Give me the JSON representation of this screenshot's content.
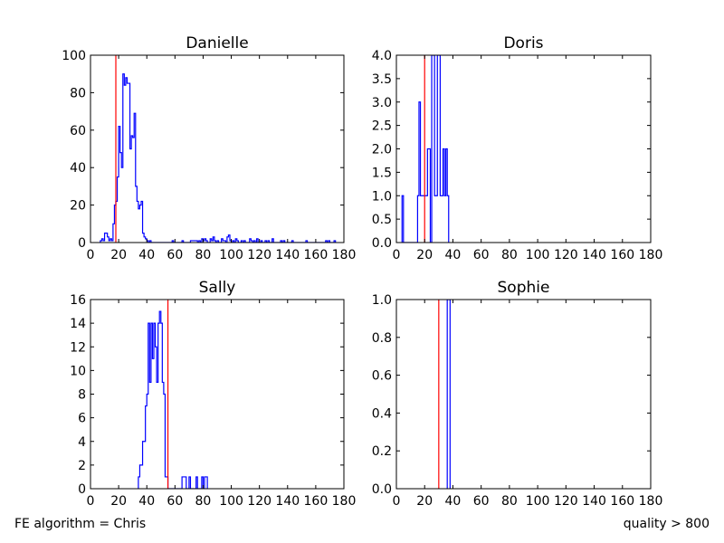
{
  "figure": {
    "footer_left": "FE algorithm = Chris",
    "footer_right": "quality > 800"
  },
  "chart_data": [
    {
      "type": "histogram",
      "title": "Danielle",
      "xlabel": "",
      "ylabel": "",
      "xlim": [
        0,
        180
      ],
      "ylim": [
        0,
        100
      ],
      "xticks": [
        0,
        20,
        40,
        60,
        80,
        100,
        120,
        140,
        160,
        180
      ],
      "yticks": [
        0,
        20,
        40,
        60,
        80,
        100
      ],
      "bin_width": 1,
      "step_color": "#0000ff",
      "threshold": {
        "x": 18,
        "color": "#ff0000"
      },
      "bins": [
        [
          7,
          1
        ],
        [
          8,
          2
        ],
        [
          9,
          1
        ],
        [
          10,
          5
        ],
        [
          11,
          5
        ],
        [
          12,
          3
        ],
        [
          13,
          1
        ],
        [
          14,
          2
        ],
        [
          15,
          1
        ],
        [
          16,
          10
        ],
        [
          17,
          20
        ],
        [
          18,
          22
        ],
        [
          19,
          35
        ],
        [
          20,
          62
        ],
        [
          21,
          48
        ],
        [
          22,
          40
        ],
        [
          23,
          90
        ],
        [
          24,
          84
        ],
        [
          25,
          88
        ],
        [
          26,
          85
        ],
        [
          27,
          85
        ],
        [
          28,
          50
        ],
        [
          29,
          57
        ],
        [
          30,
          56
        ],
        [
          31,
          69
        ],
        [
          32,
          30
        ],
        [
          33,
          22
        ],
        [
          34,
          18
        ],
        [
          35,
          20
        ],
        [
          36,
          22
        ],
        [
          37,
          5
        ],
        [
          38,
          3
        ],
        [
          39,
          2
        ],
        [
          40,
          1
        ],
        [
          42,
          1
        ],
        [
          58,
          1
        ],
        [
          65,
          1
        ],
        [
          71,
          1
        ],
        [
          72,
          1
        ],
        [
          73,
          1
        ],
        [
          74,
          1
        ],
        [
          75,
          1
        ],
        [
          77,
          1
        ],
        [
          79,
          2
        ],
        [
          80,
          1
        ],
        [
          81,
          2
        ],
        [
          82,
          1
        ],
        [
          85,
          2
        ],
        [
          86,
          1
        ],
        [
          87,
          3
        ],
        [
          88,
          1
        ],
        [
          90,
          1
        ],
        [
          93,
          2
        ],
        [
          94,
          1
        ],
        [
          95,
          1
        ],
        [
          97,
          3
        ],
        [
          98,
          4
        ],
        [
          99,
          1
        ],
        [
          101,
          1
        ],
        [
          103,
          2
        ],
        [
          104,
          1
        ],
        [
          107,
          1
        ],
        [
          109,
          1
        ],
        [
          113,
          2
        ],
        [
          114,
          1
        ],
        [
          116,
          1
        ],
        [
          118,
          2
        ],
        [
          121,
          1
        ],
        [
          124,
          1
        ],
        [
          126,
          1
        ],
        [
          129,
          2
        ],
        [
          135,
          1
        ],
        [
          137,
          1
        ],
        [
          143,
          1
        ],
        [
          153,
          1
        ],
        [
          167,
          1
        ],
        [
          169,
          1
        ],
        [
          173,
          1
        ]
      ]
    },
    {
      "type": "histogram",
      "title": "Doris",
      "xlabel": "",
      "ylabel": "",
      "xlim": [
        0,
        180
      ],
      "ylim": [
        0,
        4
      ],
      "xticks": [
        0,
        20,
        40,
        60,
        80,
        100,
        120,
        140,
        160,
        180
      ],
      "yticks": [
        0,
        0.5,
        1.0,
        1.5,
        2.0,
        2.5,
        3.0,
        3.5,
        4.0
      ],
      "ytick_format": "fixed1",
      "bin_width": 1,
      "step_color": "#0000ff",
      "threshold": {
        "x": 20,
        "color": "#ff0000"
      },
      "bins": [
        [
          4,
          1
        ],
        [
          15,
          1
        ],
        [
          16,
          3
        ],
        [
          17,
          1
        ],
        [
          18,
          1
        ],
        [
          19,
          1
        ],
        [
          20,
          1
        ],
        [
          21,
          1
        ],
        [
          22,
          2
        ],
        [
          23,
          2
        ],
        [
          25,
          4
        ],
        [
          26,
          4
        ],
        [
          27,
          1
        ],
        [
          28,
          1
        ],
        [
          29,
          4
        ],
        [
          30,
          4
        ],
        [
          31,
          1
        ],
        [
          32,
          1
        ],
        [
          33,
          2
        ],
        [
          34,
          1
        ],
        [
          35,
          2
        ],
        [
          36,
          1
        ]
      ]
    },
    {
      "type": "histogram",
      "title": "Sally",
      "xlabel": "",
      "ylabel": "",
      "xlim": [
        0,
        180
      ],
      "ylim": [
        0,
        16
      ],
      "xticks": [
        0,
        20,
        40,
        60,
        80,
        100,
        120,
        140,
        160,
        180
      ],
      "yticks": [
        0,
        2,
        4,
        6,
        8,
        10,
        12,
        14,
        16
      ],
      "bin_width": 1,
      "step_color": "#0000ff",
      "threshold": {
        "x": 55,
        "color": "#ff0000"
      },
      "bins": [
        [
          34,
          1
        ],
        [
          35,
          2
        ],
        [
          36,
          2
        ],
        [
          37,
          4
        ],
        [
          38,
          4
        ],
        [
          39,
          7
        ],
        [
          40,
          8
        ],
        [
          41,
          14
        ],
        [
          42,
          9
        ],
        [
          43,
          14
        ],
        [
          44,
          11
        ],
        [
          45,
          14
        ],
        [
          46,
          12
        ],
        [
          47,
          9
        ],
        [
          48,
          14
        ],
        [
          49,
          15
        ],
        [
          50,
          14
        ],
        [
          51,
          9
        ],
        [
          52,
          8
        ],
        [
          53,
          1
        ],
        [
          54,
          1
        ],
        [
          65,
          1
        ],
        [
          66,
          1
        ],
        [
          67,
          1
        ],
        [
          70,
          1
        ],
        [
          75,
          1
        ],
        [
          79,
          1
        ],
        [
          81,
          1
        ],
        [
          82,
          1
        ]
      ]
    },
    {
      "type": "histogram",
      "title": "Sophie",
      "xlabel": "",
      "ylabel": "",
      "xlim": [
        0,
        180
      ],
      "ylim": [
        0,
        1.0
      ],
      "xticks": [
        0,
        20,
        40,
        60,
        80,
        100,
        120,
        140,
        160,
        180
      ],
      "yticks": [
        0,
        0.2,
        0.4,
        0.6,
        0.8,
        1.0
      ],
      "ytick_format": "fixed1",
      "bin_width": 1,
      "step_color": "#0000ff",
      "threshold": {
        "x": 30,
        "color": "#ff0000"
      },
      "bins": [
        [
          36,
          1
        ],
        [
          37,
          1
        ]
      ]
    }
  ]
}
